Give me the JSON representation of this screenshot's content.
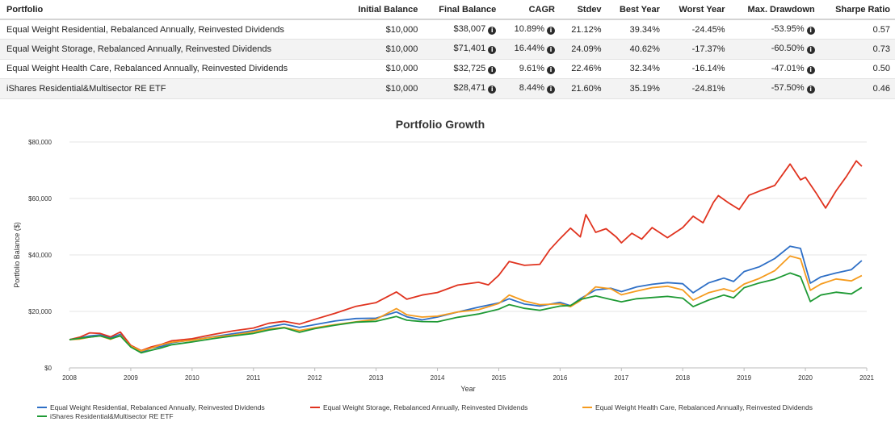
{
  "table": {
    "headers": [
      "Portfolio",
      "Initial Balance",
      "Final Balance",
      "CAGR",
      "Stdev",
      "Best Year",
      "Worst Year",
      "Max. Drawdown",
      "Sharpe Ratio"
    ],
    "rows": [
      {
        "portfolio": "Equal Weight Residential, Rebalanced Annually, Reinvested Dividends",
        "initial": "$10,000",
        "final": "$38,007",
        "cagr": "10.89%",
        "stdev": "21.12%",
        "best": "39.34%",
        "worst": "-24.45%",
        "drawdown": "-53.95%",
        "sharpe": "0.57"
      },
      {
        "portfolio": "Equal Weight Storage, Rebalanced Annually, Reinvested Dividends",
        "initial": "$10,000",
        "final": "$71,401",
        "cagr": "16.44%",
        "stdev": "24.09%",
        "best": "40.62%",
        "worst": "-17.37%",
        "drawdown": "-60.50%",
        "sharpe": "0.73"
      },
      {
        "portfolio": "Equal Weight Health Care, Rebalanced Annually, Reinvested Dividends",
        "initial": "$10,000",
        "final": "$32,725",
        "cagr": "9.61%",
        "stdev": "22.46%",
        "best": "32.34%",
        "worst": "-16.14%",
        "drawdown": "-47.01%",
        "sharpe": "0.50"
      },
      {
        "portfolio": "iShares Residential&Multisector RE ETF",
        "initial": "$10,000",
        "final": "$28,471",
        "cagr": "8.44%",
        "stdev": "21.60%",
        "best": "35.19%",
        "worst": "-24.81%",
        "drawdown": "-57.50%",
        "sharpe": "0.46"
      }
    ]
  },
  "chart_data": {
    "type": "line",
    "title": "Portfolio Growth",
    "xlabel": "Year",
    "ylabel": "Portfolio Balance ($)",
    "ylim": [
      0,
      80000
    ],
    "xlim": [
      2008,
      2021
    ],
    "yticks": [
      {
        "value": 0,
        "label": "$0"
      },
      {
        "value": 20000,
        "label": "$20,000"
      },
      {
        "value": 40000,
        "label": "$40,000"
      },
      {
        "value": 60000,
        "label": "$60,000"
      },
      {
        "value": 80000,
        "label": "$80,000"
      }
    ],
    "xticks": [
      {
        "value": 2008,
        "label": "2008"
      },
      {
        "value": 2009,
        "label": "2009"
      },
      {
        "value": 2010,
        "label": "2010"
      },
      {
        "value": 2011,
        "label": "2011"
      },
      {
        "value": 2012,
        "label": "2012"
      },
      {
        "value": 2013,
        "label": "2013"
      },
      {
        "value": 2014,
        "label": "2014"
      },
      {
        "value": 2015,
        "label": "2015"
      },
      {
        "value": 2016,
        "label": "2016"
      },
      {
        "value": 2017,
        "label": "2017"
      },
      {
        "value": 2018,
        "label": "2018"
      },
      {
        "value": 2019,
        "label": "2019"
      },
      {
        "value": 2020,
        "label": "2020"
      },
      {
        "value": 2021,
        "label": "2021"
      }
    ],
    "grid": true,
    "legend": "bottom",
    "series": [
      {
        "name": "Equal Weight Residential, Rebalanced Annually, Reinvested Dividends",
        "color": "#2e6fc6",
        "points": [
          [
            2008.0,
            10000
          ],
          [
            2008.17,
            10600
          ],
          [
            2008.33,
            11300
          ],
          [
            2008.5,
            11700
          ],
          [
            2008.67,
            10600
          ],
          [
            2008.83,
            11900
          ],
          [
            2009.0,
            7500
          ],
          [
            2009.17,
            5500
          ],
          [
            2009.33,
            7000
          ],
          [
            2009.5,
            7600
          ],
          [
            2009.67,
            8900
          ],
          [
            2010.0,
            9900
          ],
          [
            2010.33,
            11000
          ],
          [
            2010.67,
            12100
          ],
          [
            2011.0,
            13200
          ],
          [
            2011.25,
            14500
          ],
          [
            2011.5,
            15500
          ],
          [
            2011.75,
            14300
          ],
          [
            2012.0,
            15300
          ],
          [
            2012.33,
            16600
          ],
          [
            2012.67,
            17500
          ],
          [
            2013.0,
            17600
          ],
          [
            2013.33,
            19800
          ],
          [
            2013.5,
            18100
          ],
          [
            2013.75,
            17000
          ],
          [
            2014.0,
            18000
          ],
          [
            2014.33,
            19800
          ],
          [
            2014.67,
            21500
          ],
          [
            2015.0,
            23000
          ],
          [
            2015.17,
            24500
          ],
          [
            2015.42,
            22600
          ],
          [
            2015.67,
            21900
          ],
          [
            2016.0,
            23200
          ],
          [
            2016.17,
            22000
          ],
          [
            2016.33,
            24500
          ],
          [
            2016.58,
            27600
          ],
          [
            2016.83,
            28200
          ],
          [
            2017.0,
            27000
          ],
          [
            2017.25,
            28700
          ],
          [
            2017.5,
            29600
          ],
          [
            2017.75,
            30200
          ],
          [
            2018.0,
            29800
          ],
          [
            2018.17,
            26600
          ],
          [
            2018.42,
            30100
          ],
          [
            2018.67,
            31800
          ],
          [
            2018.83,
            30600
          ],
          [
            2019.0,
            34100
          ],
          [
            2019.25,
            35800
          ],
          [
            2019.5,
            38700
          ],
          [
            2019.75,
            43100
          ],
          [
            2019.92,
            42300
          ],
          [
            2020.08,
            30000
          ],
          [
            2020.25,
            32200
          ],
          [
            2020.5,
            33600
          ],
          [
            2020.75,
            34800
          ],
          [
            2020.92,
            38000
          ]
        ]
      },
      {
        "name": "Equal Weight Storage, Rebalanced Annually, Reinvested Dividends",
        "color": "#e0331f",
        "points": [
          [
            2008.0,
            10000
          ],
          [
            2008.17,
            10900
          ],
          [
            2008.33,
            12400
          ],
          [
            2008.5,
            12200
          ],
          [
            2008.67,
            11000
          ],
          [
            2008.83,
            12700
          ],
          [
            2009.0,
            8000
          ],
          [
            2009.17,
            6100
          ],
          [
            2009.33,
            7400
          ],
          [
            2009.5,
            8300
          ],
          [
            2009.67,
            9600
          ],
          [
            2010.0,
            10300
          ],
          [
            2010.33,
            11800
          ],
          [
            2010.67,
            13100
          ],
          [
            2011.0,
            14100
          ],
          [
            2011.25,
            15800
          ],
          [
            2011.5,
            16500
          ],
          [
            2011.75,
            15500
          ],
          [
            2012.0,
            17200
          ],
          [
            2012.33,
            19300
          ],
          [
            2012.67,
            21800
          ],
          [
            2013.0,
            23100
          ],
          [
            2013.33,
            26900
          ],
          [
            2013.5,
            24300
          ],
          [
            2013.75,
            25800
          ],
          [
            2014.0,
            26700
          ],
          [
            2014.33,
            29300
          ],
          [
            2014.67,
            30300
          ],
          [
            2014.83,
            29400
          ],
          [
            2015.0,
            32800
          ],
          [
            2015.17,
            37700
          ],
          [
            2015.42,
            36300
          ],
          [
            2015.67,
            36700
          ],
          [
            2015.83,
            41800
          ],
          [
            2016.0,
            45800
          ],
          [
            2016.17,
            49500
          ],
          [
            2016.33,
            46400
          ],
          [
            2016.42,
            54300
          ],
          [
            2016.58,
            48000
          ],
          [
            2016.75,
            49300
          ],
          [
            2016.92,
            46300
          ],
          [
            2017.0,
            44300
          ],
          [
            2017.17,
            47700
          ],
          [
            2017.33,
            45600
          ],
          [
            2017.5,
            49700
          ],
          [
            2017.75,
            46100
          ],
          [
            2018.0,
            49700
          ],
          [
            2018.17,
            53700
          ],
          [
            2018.33,
            51400
          ],
          [
            2018.5,
            58600
          ],
          [
            2018.58,
            61000
          ],
          [
            2018.75,
            58400
          ],
          [
            2018.92,
            56100
          ],
          [
            2019.08,
            61100
          ],
          [
            2019.25,
            62600
          ],
          [
            2019.5,
            64600
          ],
          [
            2019.75,
            72200
          ],
          [
            2019.92,
            66600
          ],
          [
            2020.0,
            67500
          ],
          [
            2020.17,
            62100
          ],
          [
            2020.33,
            56600
          ],
          [
            2020.5,
            62700
          ],
          [
            2020.67,
            67800
          ],
          [
            2020.83,
            73300
          ],
          [
            2020.92,
            71400
          ]
        ]
      },
      {
        "name": "Equal Weight Health Care, Rebalanced Annually, Reinvested Dividends",
        "color": "#f59b1e",
        "points": [
          [
            2008.0,
            10000
          ],
          [
            2008.17,
            10200
          ],
          [
            2008.33,
            10900
          ],
          [
            2008.5,
            11300
          ],
          [
            2008.67,
            10100
          ],
          [
            2008.83,
            11500
          ],
          [
            2009.0,
            7700
          ],
          [
            2009.17,
            6000
          ],
          [
            2009.33,
            7000
          ],
          [
            2009.5,
            8200
          ],
          [
            2009.67,
            9100
          ],
          [
            2010.0,
            9800
          ],
          [
            2010.33,
            10900
          ],
          [
            2010.67,
            11600
          ],
          [
            2011.0,
            12800
          ],
          [
            2011.25,
            13800
          ],
          [
            2011.5,
            14300
          ],
          [
            2011.75,
            13200
          ],
          [
            2012.0,
            14200
          ],
          [
            2012.33,
            15300
          ],
          [
            2012.67,
            16300
          ],
          [
            2013.0,
            17200
          ],
          [
            2013.33,
            21000
          ],
          [
            2013.5,
            18800
          ],
          [
            2013.75,
            18000
          ],
          [
            2014.0,
            18300
          ],
          [
            2014.33,
            19800
          ],
          [
            2014.67,
            20600
          ],
          [
            2015.0,
            22800
          ],
          [
            2015.17,
            25800
          ],
          [
            2015.42,
            23700
          ],
          [
            2015.67,
            22400
          ],
          [
            2016.0,
            22700
          ],
          [
            2016.17,
            21700
          ],
          [
            2016.33,
            23800
          ],
          [
            2016.58,
            28700
          ],
          [
            2016.83,
            28000
          ],
          [
            2017.0,
            25900
          ],
          [
            2017.25,
            27200
          ],
          [
            2017.5,
            28400
          ],
          [
            2017.75,
            28900
          ],
          [
            2018.0,
            27600
          ],
          [
            2018.17,
            24000
          ],
          [
            2018.42,
            26600
          ],
          [
            2018.67,
            28000
          ],
          [
            2018.83,
            27000
          ],
          [
            2019.0,
            29700
          ],
          [
            2019.25,
            31700
          ],
          [
            2019.5,
            34400
          ],
          [
            2019.75,
            39600
          ],
          [
            2019.92,
            38600
          ],
          [
            2020.08,
            27500
          ],
          [
            2020.25,
            29700
          ],
          [
            2020.5,
            31500
          ],
          [
            2020.75,
            30800
          ],
          [
            2020.92,
            32700
          ]
        ]
      },
      {
        "name": "iShares Residential&Multisector RE ETF",
        "color": "#1f9a35",
        "points": [
          [
            2008.0,
            10000
          ],
          [
            2008.17,
            10500
          ],
          [
            2008.33,
            10900
          ],
          [
            2008.5,
            11300
          ],
          [
            2008.67,
            10300
          ],
          [
            2008.83,
            11300
          ],
          [
            2009.0,
            7400
          ],
          [
            2009.17,
            5300
          ],
          [
            2009.33,
            6200
          ],
          [
            2009.5,
            7100
          ],
          [
            2009.67,
            8200
          ],
          [
            2010.0,
            9200
          ],
          [
            2010.33,
            10300
          ],
          [
            2010.67,
            11300
          ],
          [
            2011.0,
            12200
          ],
          [
            2011.25,
            13400
          ],
          [
            2011.5,
            14200
          ],
          [
            2011.75,
            12600
          ],
          [
            2012.0,
            13900
          ],
          [
            2012.33,
            15100
          ],
          [
            2012.67,
            16200
          ],
          [
            2013.0,
            16500
          ],
          [
            2013.33,
            18200
          ],
          [
            2013.5,
            16900
          ],
          [
            2013.75,
            16400
          ],
          [
            2014.0,
            16300
          ],
          [
            2014.33,
            17900
          ],
          [
            2014.67,
            19100
          ],
          [
            2015.0,
            20800
          ],
          [
            2015.17,
            22400
          ],
          [
            2015.42,
            21100
          ],
          [
            2015.67,
            20400
          ],
          [
            2016.0,
            21900
          ],
          [
            2016.17,
            22100
          ],
          [
            2016.33,
            24200
          ],
          [
            2016.58,
            25500
          ],
          [
            2016.83,
            24200
          ],
          [
            2017.0,
            23400
          ],
          [
            2017.25,
            24500
          ],
          [
            2017.5,
            24900
          ],
          [
            2017.75,
            25300
          ],
          [
            2018.0,
            24700
          ],
          [
            2018.17,
            21700
          ],
          [
            2018.42,
            24000
          ],
          [
            2018.67,
            25800
          ],
          [
            2018.83,
            24800
          ],
          [
            2019.0,
            28400
          ],
          [
            2019.25,
            30100
          ],
          [
            2019.5,
            31400
          ],
          [
            2019.75,
            33600
          ],
          [
            2019.92,
            32300
          ],
          [
            2020.08,
            23500
          ],
          [
            2020.25,
            25800
          ],
          [
            2020.5,
            26800
          ],
          [
            2020.75,
            26200
          ],
          [
            2020.92,
            28500
          ]
        ]
      }
    ]
  }
}
